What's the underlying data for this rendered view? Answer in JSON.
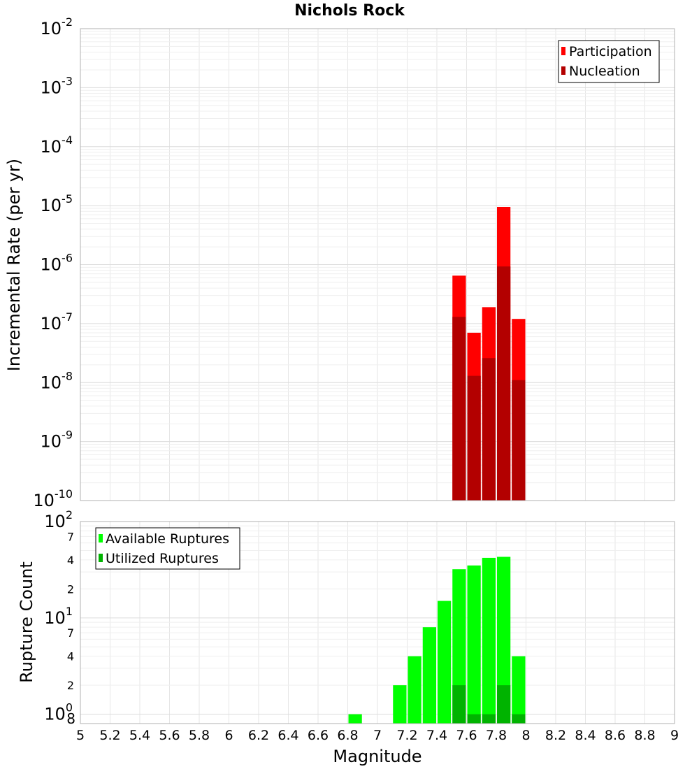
{
  "chart_data": [
    {
      "type": "bar",
      "title": "Nichols Rock",
      "xlabel": "",
      "ylabel": "Incremental Rate (per yr)",
      "yscale": "log",
      "ylim": [
        1e-10,
        0.01
      ],
      "xlim": [
        5,
        9
      ],
      "bin_width": 0.1,
      "legend_position": "top-right",
      "grid": true,
      "y_ticks": [
        {
          "base": "10",
          "exp": "-10"
        },
        {
          "base": "10",
          "exp": "-9"
        },
        {
          "base": "10",
          "exp": "-8"
        },
        {
          "base": "10",
          "exp": "-7"
        },
        {
          "base": "10",
          "exp": "-6"
        },
        {
          "base": "10",
          "exp": "-5"
        },
        {
          "base": "10",
          "exp": "-4"
        },
        {
          "base": "10",
          "exp": "-3"
        },
        {
          "base": "10",
          "exp": "-2"
        }
      ],
      "series": [
        {
          "name": "Participation",
          "color": "#ff0000",
          "points": [
            {
              "x": 7.55,
              "y": 6.5e-07
            },
            {
              "x": 7.65,
              "y": 7e-08
            },
            {
              "x": 7.75,
              "y": 1.9e-07
            },
            {
              "x": 7.85,
              "y": 9.5e-06
            },
            {
              "x": 7.95,
              "y": 1.2e-07
            }
          ]
        },
        {
          "name": "Nucleation",
          "color": "#b30000",
          "points": [
            {
              "x": 7.55,
              "y": 1.3e-07
            },
            {
              "x": 7.65,
              "y": 1.3e-08
            },
            {
              "x": 7.75,
              "y": 2.6e-08
            },
            {
              "x": 7.85,
              "y": 9.3e-07
            },
            {
              "x": 7.95,
              "y": 1.1e-08
            }
          ]
        }
      ]
    },
    {
      "type": "bar",
      "title": "",
      "xlabel": "Magnitude",
      "ylabel": "Rupture Count",
      "yscale": "log",
      "ylim": [
        0.8,
        100
      ],
      "xlim": [
        5,
        9
      ],
      "bin_width": 0.1,
      "legend_position": "top-left",
      "grid": true,
      "x_ticks": [
        "5",
        "5.2",
        "5.4",
        "5.6",
        "5.8",
        "6",
        "6.2",
        "6.4",
        "6.6",
        "6.8",
        "7",
        "7.2",
        "7.4",
        "7.6",
        "7.8",
        "8",
        "8.2",
        "8.4",
        "8.6",
        "8.8",
        "9"
      ],
      "y_major_ticks": [
        {
          "value": 1,
          "base": "10",
          "exp": "0"
        },
        {
          "value": 10,
          "base": "10",
          "exp": "1"
        },
        {
          "value": 100,
          "base": "10",
          "exp": "2"
        }
      ],
      "y_minor_ticks": [
        {
          "value": 0.8,
          "label": "8"
        },
        {
          "value": 2,
          "label": "2"
        },
        {
          "value": 4,
          "label": "4"
        },
        {
          "value": 7,
          "label": "7"
        },
        {
          "value": 20,
          "label": "2"
        },
        {
          "value": 40,
          "label": "4"
        },
        {
          "value": 70,
          "label": "7"
        }
      ],
      "series": [
        {
          "name": "Available Ruptures",
          "color": "#00ff00",
          "points": [
            {
              "x": 6.85,
              "y": 1
            },
            {
              "x": 7.15,
              "y": 2
            },
            {
              "x": 7.25,
              "y": 4
            },
            {
              "x": 7.35,
              "y": 8
            },
            {
              "x": 7.45,
              "y": 15
            },
            {
              "x": 7.55,
              "y": 32
            },
            {
              "x": 7.65,
              "y": 35
            },
            {
              "x": 7.75,
              "y": 42
            },
            {
              "x": 7.85,
              "y": 43
            },
            {
              "x": 7.95,
              "y": 4
            }
          ]
        },
        {
          "name": "Utilized Ruptures",
          "color": "#00b300",
          "points": [
            {
              "x": 7.55,
              "y": 2
            },
            {
              "x": 7.65,
              "y": 1
            },
            {
              "x": 7.75,
              "y": 1
            },
            {
              "x": 7.85,
              "y": 2
            },
            {
              "x": 7.95,
              "y": 1
            }
          ]
        }
      ]
    }
  ]
}
